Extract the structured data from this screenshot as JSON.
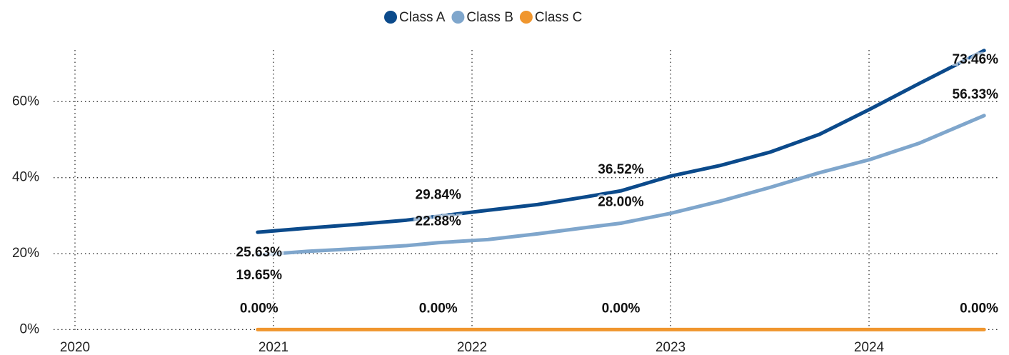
{
  "chart_data": {
    "type": "line",
    "x": [
      2020.92,
      2021.17,
      2021.42,
      2021.67,
      2021.83,
      2022.08,
      2022.33,
      2022.58,
      2022.75,
      2023.0,
      2023.25,
      2023.5,
      2023.75,
      2024.0,
      2024.25,
      2024.58
    ],
    "series": [
      {
        "name": "Class A",
        "color": "#0b4a8b",
        "values": [
          25.63,
          26.7,
          27.7,
          28.8,
          29.84,
          31.4,
          32.9,
          35.0,
          36.52,
          40.4,
          43.2,
          46.7,
          51.4,
          57.9,
          64.7,
          73.46
        ],
        "value_labels": [
          "25.63%",
          null,
          null,
          null,
          "29.84%",
          null,
          null,
          null,
          "36.52%",
          null,
          null,
          null,
          null,
          null,
          null,
          "73.46%"
        ]
      },
      {
        "name": "Class B",
        "color": "#7fa6cc",
        "values": [
          19.65,
          20.6,
          21.3,
          22.1,
          22.88,
          23.7,
          25.2,
          26.9,
          28.0,
          30.6,
          33.8,
          37.4,
          41.3,
          44.7,
          49.0,
          56.33
        ],
        "value_labels": [
          "19.65%",
          null,
          null,
          null,
          "22.88%",
          null,
          null,
          null,
          "28.00%",
          null,
          null,
          null,
          null,
          null,
          null,
          "56.33%"
        ]
      },
      {
        "name": "Class C",
        "color": "#f0962e",
        "values": [
          0,
          0,
          0,
          0,
          0,
          0,
          0,
          0,
          0,
          0,
          0,
          0,
          0,
          0,
          0,
          0
        ],
        "value_labels": [
          "0.00%",
          null,
          null,
          null,
          "0.00%",
          null,
          null,
          null,
          "0.00%",
          null,
          null,
          null,
          null,
          null,
          null,
          "0.00%"
        ]
      }
    ],
    "xlim": [
      2019.99,
      2024.65
    ],
    "xticks": [
      2020,
      2021,
      2022,
      2023,
      2024
    ],
    "ylim": [
      -0.3,
      73.6
    ],
    "yticks": [
      {
        "value": 0,
        "label": "0%"
      },
      {
        "value": 20,
        "label": "20%"
      },
      {
        "value": 40,
        "label": "40%"
      },
      {
        "value": 60,
        "label": "60%"
      }
    ],
    "grid": true,
    "legend": "top"
  }
}
